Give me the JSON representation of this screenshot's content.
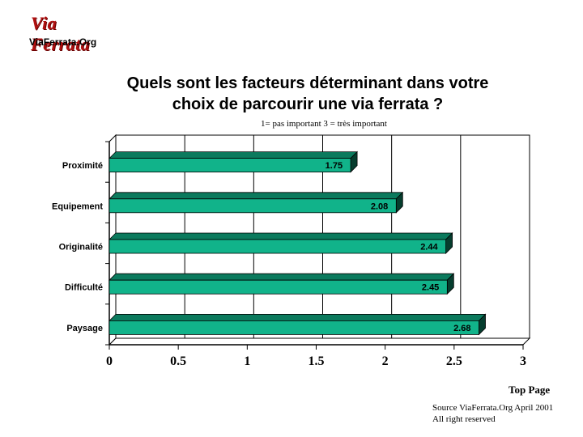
{
  "logo": {
    "script_text": "Via Ferrata",
    "url_text": "ViaFerrata.Org"
  },
  "title_lines": [
    "Quels sont les facteurs déterminant dans votre",
    "choix de parcourir une via ferrata ?"
  ],
  "subtitle": "1= pas important  3 = très important",
  "footer": {
    "top_page": "Top Page",
    "source_line1": "Source ViaFerrata.Org April 2001",
    "source_line2": "All right reserved"
  },
  "colors": {
    "bar_front": "#11b38a",
    "bar_top": "#0b7a5d",
    "bar_shadow": "#063d2e",
    "logo_red": "#b01010"
  },
  "chart_data": {
    "type": "bar",
    "orientation": "horizontal",
    "categories": [
      "Proximité",
      "Equipement",
      "Originalité",
      "Difficulté",
      "Paysage"
    ],
    "values": [
      1.75,
      2.08,
      2.44,
      2.45,
      2.68
    ],
    "value_labels": [
      "1.75",
      "2.08",
      "2.44",
      "2.45",
      "2.68"
    ],
    "xlim": [
      0,
      3
    ],
    "x_ticks": [
      0,
      0.5,
      1,
      1.5,
      2,
      2.5,
      3
    ],
    "x_tick_labels": [
      "0",
      "0.5",
      "1",
      "1.5",
      "2",
      "2.5",
      "3"
    ],
    "grid": true,
    "three_d": true
  }
}
